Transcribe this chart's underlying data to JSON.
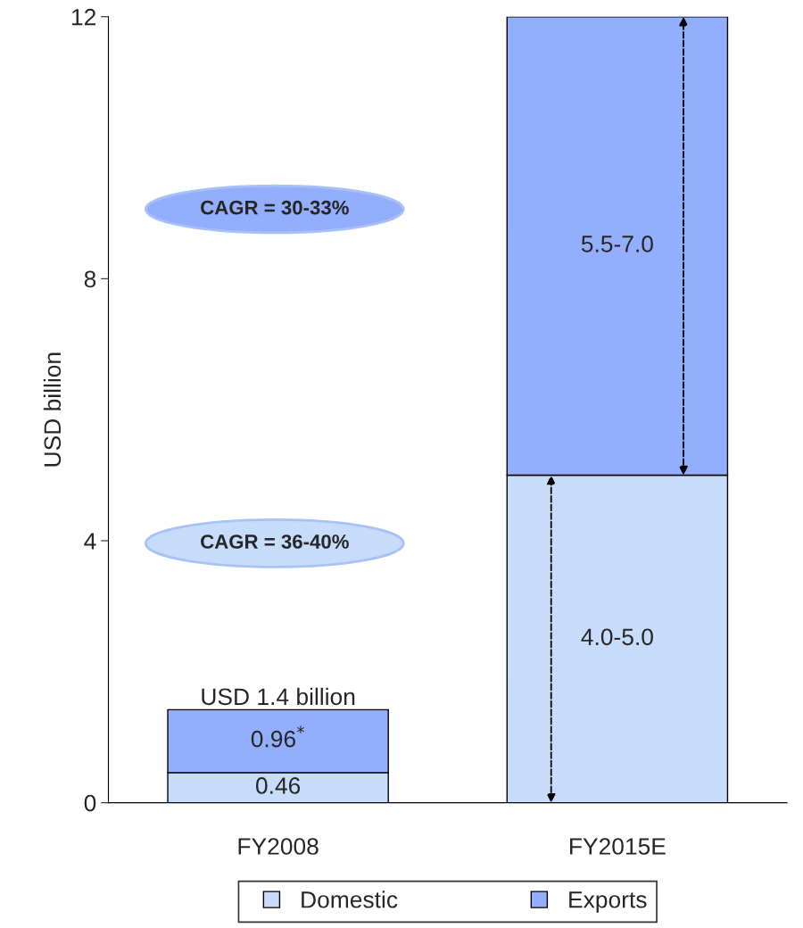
{
  "chart_data": {
    "type": "bar",
    "stacked": true,
    "ylabel": "USD billion",
    "categories": [
      "FY2008",
      "FY2015E"
    ],
    "series": [
      {
        "name": "Domestic",
        "color": "#c6dcfa",
        "values": [
          0.46,
          5.0
        ],
        "value_labels": [
          "0.46",
          "4.0-5.0"
        ]
      },
      {
        "name": "Exports",
        "color": "#93aefc",
        "values": [
          0.96,
          7.0
        ],
        "value_labels": [
          "0.96$^{*}$",
          "5.5-7.0"
        ]
      }
    ],
    "ylim": [
      0,
      12
    ],
    "yticks": [
      0,
      4,
      8,
      12
    ],
    "grid": false,
    "legend": "bottom",
    "annotations": [
      {
        "text": "USD 1.4 billion",
        "x": "FY2008",
        "y": 1.42
      },
      "CAGR = 30-33%",
      "CAGR = 36-40%"
    ]
  }
}
